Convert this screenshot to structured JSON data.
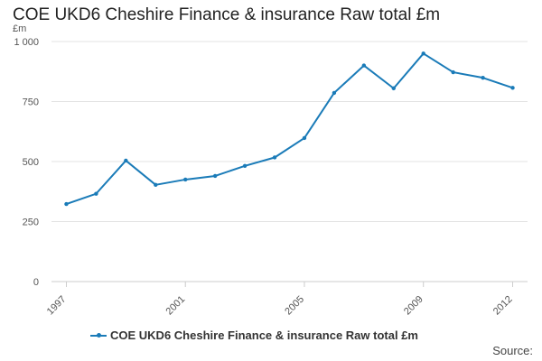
{
  "chart_data": {
    "type": "line",
    "title": "COE UKD6 Cheshire Finance & insurance Raw total £m",
    "ylabel": "£m",
    "xlabel": "",
    "ylim": [
      0,
      1000
    ],
    "yticks": [
      0,
      250,
      500,
      750,
      1000
    ],
    "ytick_labels": [
      "0",
      "250",
      "500",
      "750",
      "1 000"
    ],
    "xticks": [
      1997,
      2001,
      2005,
      2009,
      2012
    ],
    "grid": true,
    "legend_position": "bottom",
    "series": [
      {
        "name": "COE UKD6 Cheshire Finance & insurance Raw total £m",
        "color": "#1a7bb8",
        "x": [
          1997,
          1998,
          1999,
          2000,
          2001,
          2002,
          2003,
          2004,
          2005,
          2006,
          2007,
          2008,
          2009,
          2010,
          2011,
          2012
        ],
        "values": [
          323,
          366,
          504,
          403,
          425,
          440,
          482,
          517,
          598,
          786,
          900,
          805,
          950,
          872,
          849,
          807
        ]
      }
    ]
  },
  "source_label": "Source:"
}
